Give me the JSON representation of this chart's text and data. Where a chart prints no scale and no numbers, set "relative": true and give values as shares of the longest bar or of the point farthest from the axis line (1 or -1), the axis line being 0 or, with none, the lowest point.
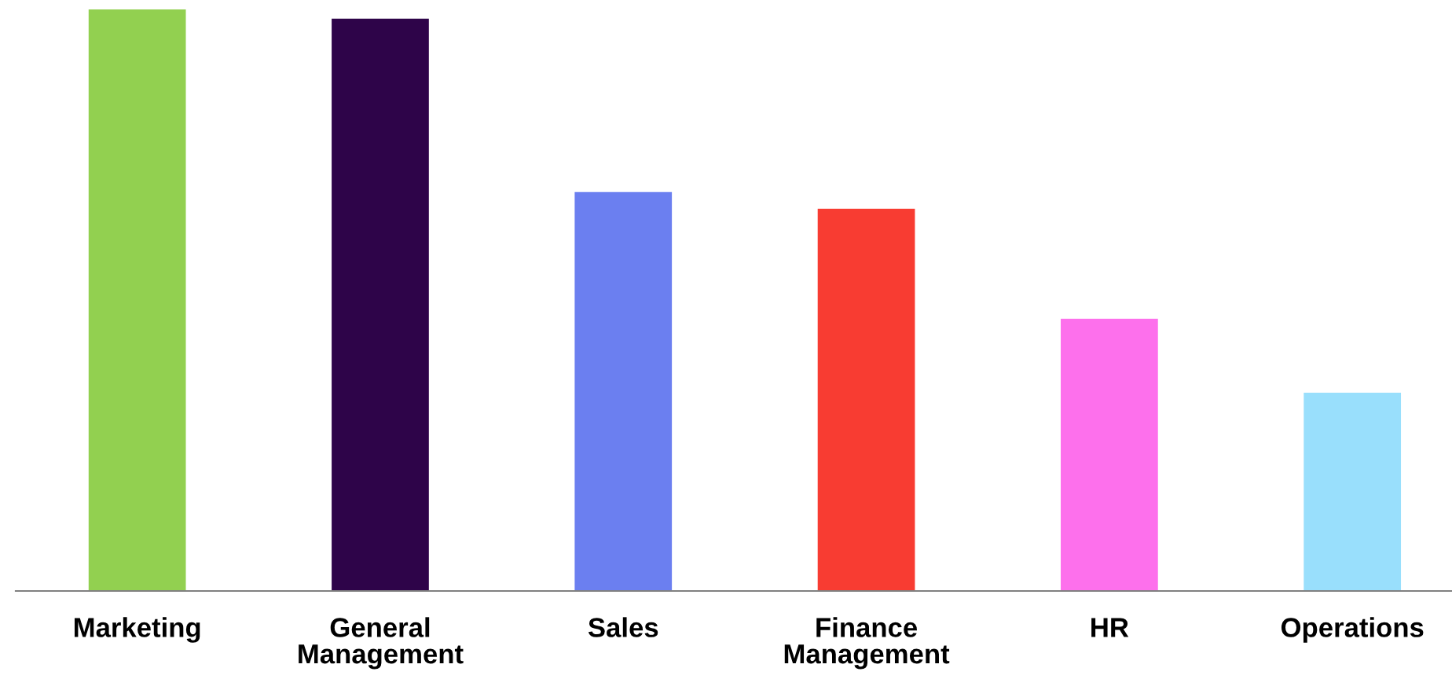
{
  "chart_data": {
    "type": "bar",
    "relative": true,
    "categories": [
      "Marketing",
      "General\nManagement",
      "Sales",
      "Finance\nManagement",
      "HR",
      "Operations"
    ],
    "values": [
      1,
      0.984,
      0.686,
      0.657,
      0.468,
      0.341
    ],
    "colors": [
      "#92d050",
      "#2e0449",
      "#6b7ff0",
      "#f83c32",
      "#fd70ec",
      "#99dffc"
    ],
    "grid": false,
    "legend": false
  }
}
